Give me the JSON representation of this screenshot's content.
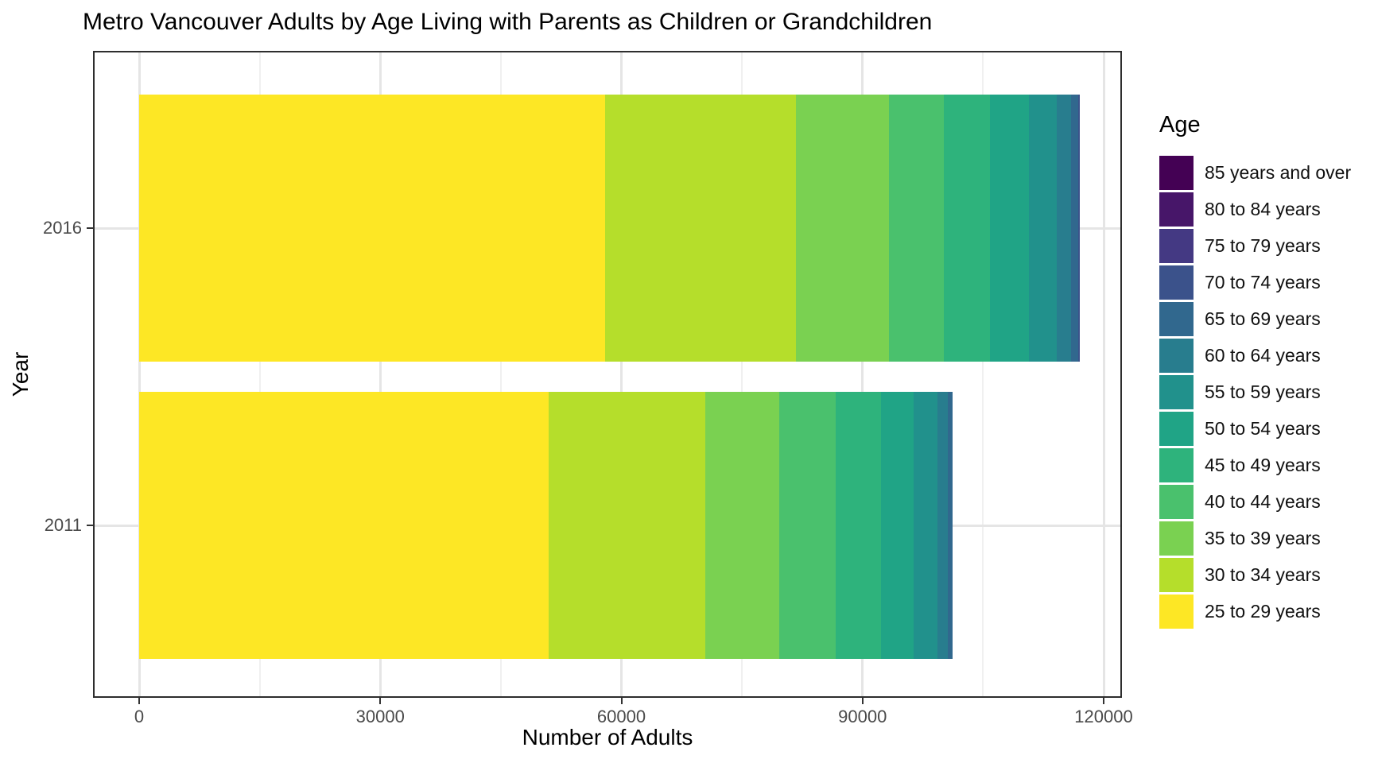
{
  "title": "Metro Vancouver Adults by Age Living with Parents as Children or Grandchildren",
  "chart_data": {
    "type": "bar",
    "orientation": "horizontal",
    "stacked": true,
    "title": "Metro Vancouver Adults by Age Living with Parents as Children or Grandchildren",
    "xlabel": "Number of Adults",
    "ylabel": "Year",
    "legend_title": "Age",
    "legend_position": "right",
    "grid": true,
    "categories": [
      "2016",
      "2011"
    ],
    "x_ticks": [
      0,
      30000,
      60000,
      90000,
      120000
    ],
    "x_tick_labels": [
      "0",
      "30000",
      "60000",
      "90000",
      "120000"
    ],
    "x_minor_ticks": [
      15000,
      45000,
      75000,
      105000
    ],
    "xlim": [
      -5900,
      122900
    ],
    "series": [
      {
        "name": "25 to 29 years",
        "color": "#fde725",
        "values": [
          58000,
          50900
        ]
      },
      {
        "name": "30 to 34 years",
        "color": "#b5de2b",
        "values": [
          23700,
          19500
        ]
      },
      {
        "name": "35 to 39 years",
        "color": "#7ad151",
        "values": [
          11600,
          9200
        ]
      },
      {
        "name": "40 to 44 years",
        "color": "#4ac16d",
        "values": [
          6800,
          7100
        ]
      },
      {
        "name": "45 to 49 years",
        "color": "#2eb37c",
        "values": [
          5800,
          5600
        ]
      },
      {
        "name": "50 to 54 years",
        "color": "#20a486",
        "values": [
          4800,
          4100
        ]
      },
      {
        "name": "55 to 59 years",
        "color": "#21918c",
        "values": [
          3500,
          2900
        ]
      },
      {
        "name": "60 to 64 years",
        "color": "#287d8e",
        "values": [
          1700,
          1300
        ]
      },
      {
        "name": "65 to 69 years",
        "color": "#31688e",
        "values": [
          900,
          600
        ]
      },
      {
        "name": "70 to 74 years",
        "color": "#3b528b",
        "values": [
          200,
          0
        ]
      },
      {
        "name": "75 to 79 years",
        "color": "#443983",
        "values": [
          0,
          0
        ]
      },
      {
        "name": "80 to 84 years",
        "color": "#471669",
        "values": [
          0,
          0
        ]
      },
      {
        "name": "85 years and over",
        "color": "#440154",
        "values": [
          0,
          0
        ]
      }
    ],
    "legend_order_top_to_bottom": [
      "85 years and over",
      "80 to 84 years",
      "75 to 79 years",
      "70 to 74 years",
      "65 to 69 years",
      "60 to 64 years",
      "55 to 59 years",
      "50 to 54 years",
      "45 to 49 years",
      "40 to 44 years",
      "35 to 39 years",
      "30 to 34 years",
      "25 to 29 years"
    ]
  }
}
